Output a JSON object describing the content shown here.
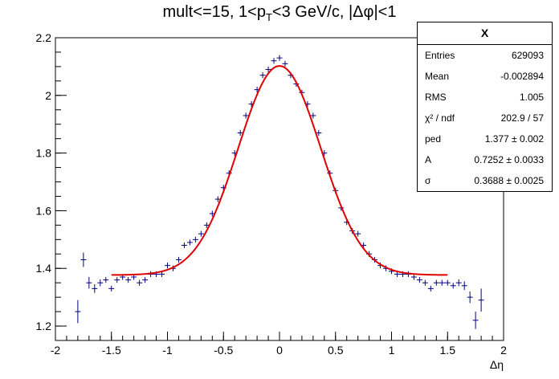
{
  "title": {
    "prefix": "mult<=15, 1<p",
    "sub": "T",
    "suffix": "<3 GeV/c, |Δφ|<1"
  },
  "statbox": {
    "title": "X",
    "rows": [
      {
        "label": "Entries",
        "value": "629093"
      },
      {
        "label": "Mean",
        "value": "-0.002894"
      },
      {
        "label": "RMS",
        "value": "1.005"
      },
      {
        "label": "χ² / ndf",
        "value": "202.9 / 57"
      },
      {
        "label": "ped",
        "value": "1.377 ± 0.002"
      },
      {
        "label": "A",
        "value": "0.7252 ± 0.0033"
      },
      {
        "label": "σ",
        "value": "0.3688 ± 0.0025"
      }
    ]
  },
  "colors": {
    "points": "#000080",
    "fit": "#e00000",
    "axis": "#000000"
  },
  "chart_data": {
    "type": "scatter",
    "xlabel": "Δη",
    "ylabel": "",
    "xlim": [
      -2,
      2
    ],
    "ylim": [
      1.15,
      2.2
    ],
    "xticks": [
      -2,
      -1.5,
      -1,
      -0.5,
      0,
      0.5,
      1,
      1.5,
      2
    ],
    "xtick_labels": [
      "-2",
      "-1.5",
      "-1",
      "-0.5",
      "0",
      "0.5",
      "1",
      "1.5",
      "2"
    ],
    "yticks": [
      1.2,
      1.4,
      1.6,
      1.8,
      2.0,
      2.2
    ],
    "ytick_labels": [
      "1.2",
      "1.4",
      "1.6",
      "1.8",
      "2",
      "2.2"
    ],
    "bin_width": 0.05,
    "points": {
      "x": [
        -1.8,
        -1.75,
        -1.7,
        -1.65,
        -1.6,
        -1.55,
        -1.5,
        -1.45,
        -1.4,
        -1.35,
        -1.3,
        -1.25,
        -1.2,
        -1.15,
        -1.1,
        -1.05,
        -1.0,
        -0.95,
        -0.9,
        -0.85,
        -0.8,
        -0.75,
        -0.7,
        -0.65,
        -0.6,
        -0.55,
        -0.5,
        -0.45,
        -0.4,
        -0.35,
        -0.3,
        -0.25,
        -0.2,
        -0.15,
        -0.1,
        -0.05,
        0.0,
        0.05,
        0.1,
        0.15,
        0.2,
        0.25,
        0.3,
        0.35,
        0.4,
        0.45,
        0.5,
        0.55,
        0.6,
        0.65,
        0.7,
        0.75,
        0.8,
        0.85,
        0.9,
        0.95,
        1.0,
        1.05,
        1.1,
        1.15,
        1.2,
        1.25,
        1.3,
        1.35,
        1.4,
        1.45,
        1.5,
        1.55,
        1.6,
        1.65,
        1.7,
        1.75,
        1.8
      ],
      "y": [
        1.25,
        1.43,
        1.35,
        1.33,
        1.35,
        1.36,
        1.33,
        1.36,
        1.37,
        1.36,
        1.37,
        1.35,
        1.36,
        1.38,
        1.38,
        1.38,
        1.41,
        1.4,
        1.43,
        1.48,
        1.49,
        1.5,
        1.52,
        1.55,
        1.59,
        1.64,
        1.68,
        1.73,
        1.8,
        1.87,
        1.93,
        1.97,
        2.02,
        2.07,
        2.09,
        2.12,
        2.13,
        2.11,
        2.07,
        2.04,
        2.01,
        1.97,
        1.93,
        1.87,
        1.8,
        1.73,
        1.67,
        1.61,
        1.56,
        1.53,
        1.52,
        1.48,
        1.45,
        1.43,
        1.41,
        1.4,
        1.39,
        1.38,
        1.38,
        1.38,
        1.37,
        1.36,
        1.35,
        1.33,
        1.35,
        1.35,
        1.35,
        1.34,
        1.35,
        1.34,
        1.3,
        1.22,
        1.29
      ],
      "yerr": [
        0.04,
        0.025,
        0.02,
        0.015,
        0.012,
        0.01,
        0.01,
        0.01,
        0.01,
        0.01,
        0.01,
        0.01,
        0.01,
        0.01,
        0.01,
        0.01,
        0.01,
        0.01,
        0.01,
        0.01,
        0.01,
        0.01,
        0.01,
        0.01,
        0.01,
        0.01,
        0.01,
        0.01,
        0.01,
        0.01,
        0.01,
        0.01,
        0.01,
        0.01,
        0.01,
        0.01,
        0.01,
        0.01,
        0.01,
        0.01,
        0.01,
        0.01,
        0.01,
        0.01,
        0.01,
        0.01,
        0.01,
        0.01,
        0.01,
        0.01,
        0.01,
        0.01,
        0.01,
        0.01,
        0.01,
        0.01,
        0.01,
        0.01,
        0.01,
        0.01,
        0.01,
        0.01,
        0.01,
        0.01,
        0.01,
        0.01,
        0.01,
        0.01,
        0.012,
        0.015,
        0.02,
        0.03,
        0.04
      ]
    },
    "fit": {
      "function": "ped + A*exp(-x^2/(2*sigma^2))",
      "ped": 1.377,
      "A": 0.7252,
      "sigma": 0.3688,
      "xrange": [
        -1.5,
        1.5
      ]
    }
  }
}
